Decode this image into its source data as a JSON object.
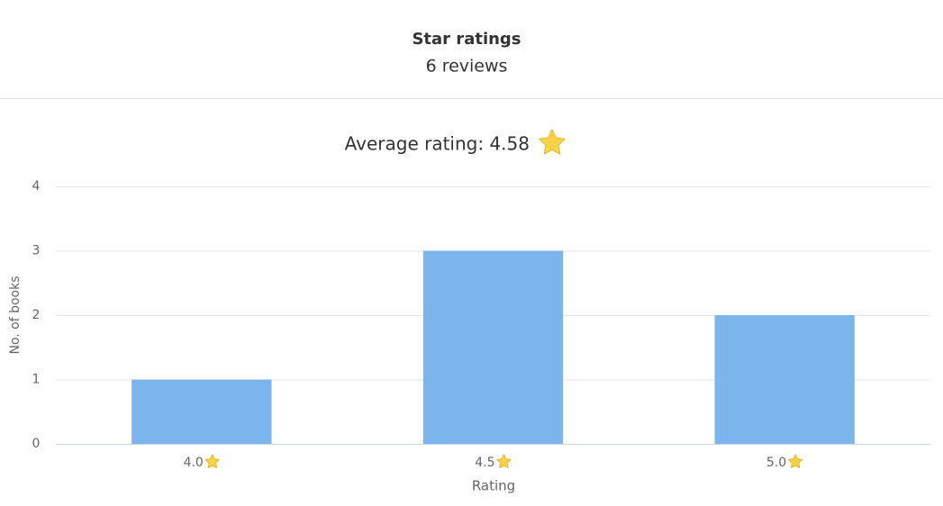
{
  "header": {
    "title": "Star ratings",
    "subtitle": "6 reviews"
  },
  "chart_data": {
    "type": "bar",
    "title": "Average rating: 4.58",
    "categories": [
      "4.0",
      "4.5",
      "5.0"
    ],
    "values": [
      1,
      3,
      2
    ],
    "color": "#7cb5ec",
    "ylim": [
      0,
      4
    ],
    "yticks": [
      0,
      1,
      2,
      3,
      4
    ],
    "grid": true,
    "x_label": "Rating",
    "y_label": "No. of books"
  }
}
